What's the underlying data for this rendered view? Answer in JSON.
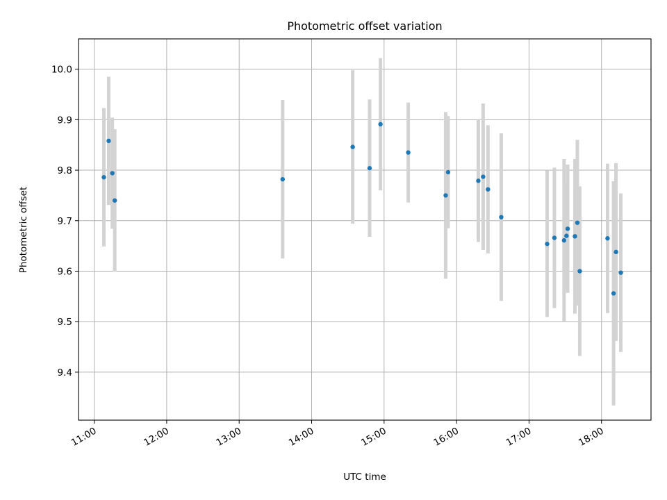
{
  "chart_data": {
    "type": "scatter",
    "title": "Photometric offset variation",
    "xlabel": "UTC time",
    "ylabel": "Photometric offset",
    "grid": true,
    "x_unit": "UTC time (HH:MM)",
    "xlim": [
      "10:47",
      "18:41"
    ],
    "ylim": [
      9.305,
      10.06
    ],
    "x_ticks": [
      "11:00",
      "12:00",
      "13:00",
      "14:00",
      "15:00",
      "16:00",
      "17:00",
      "18:00"
    ],
    "y_ticks": [
      9.4,
      9.5,
      9.6,
      9.7,
      9.8,
      9.9,
      10.0
    ],
    "y_tick_labels": [
      "9.4",
      "9.5",
      "9.6",
      "9.7",
      "9.8",
      "9.9",
      "10.0"
    ],
    "marker_color": "#1f77b4",
    "errorbar_color": "#d3d3d3",
    "points": [
      {
        "x": "11:08",
        "y": 9.786,
        "err": 0.137
      },
      {
        "x": "11:12",
        "y": 9.858,
        "err": 0.127
      },
      {
        "x": "11:15",
        "y": 9.794,
        "err": 0.11
      },
      {
        "x": "11:17",
        "y": 9.74,
        "err": 0.141
      },
      {
        "x": "13:36",
        "y": 9.782,
        "err": 0.157
      },
      {
        "x": "14:34",
        "y": 9.846,
        "err": 0.152
      },
      {
        "x": "14:48",
        "y": 9.804,
        "err": 0.136
      },
      {
        "x": "14:57",
        "y": 9.891,
        "err": 0.131
      },
      {
        "x": "15:20",
        "y": 9.835,
        "err": 0.099
      },
      {
        "x": "15:51",
        "y": 9.75,
        "err": 0.165
      },
      {
        "x": "15:53",
        "y": 9.796,
        "err": 0.111
      },
      {
        "x": "16:18",
        "y": 9.779,
        "err": 0.121
      },
      {
        "x": "16:22",
        "y": 9.787,
        "err": 0.145
      },
      {
        "x": "16:26",
        "y": 9.762,
        "err": 0.127
      },
      {
        "x": "16:37",
        "y": 9.707,
        "err": 0.166
      },
      {
        "x": "17:15",
        "y": 9.654,
        "err": 0.145
      },
      {
        "x": "17:21",
        "y": 9.666,
        "err": 0.139
      },
      {
        "x": "17:29",
        "y": 9.661,
        "err": 0.161
      },
      {
        "x": "17:31",
        "y": 9.67,
        "err": 0.105
      },
      {
        "x": "17:32",
        "y": 9.684,
        "err": 0.127
      },
      {
        "x": "17:38",
        "y": 9.669,
        "err": 0.153
      },
      {
        "x": "17:40",
        "y": 9.696,
        "err": 0.164
      },
      {
        "x": "17:42",
        "y": 9.6,
        "err": 0.168
      },
      {
        "x": "18:05",
        "y": 9.665,
        "err": 0.148
      },
      {
        "x": "18:10",
        "y": 9.556,
        "err": 0.222
      },
      {
        "x": "18:12",
        "y": 9.638,
        "err": 0.176
      },
      {
        "x": "18:16",
        "y": 9.597,
        "err": 0.157
      }
    ]
  }
}
